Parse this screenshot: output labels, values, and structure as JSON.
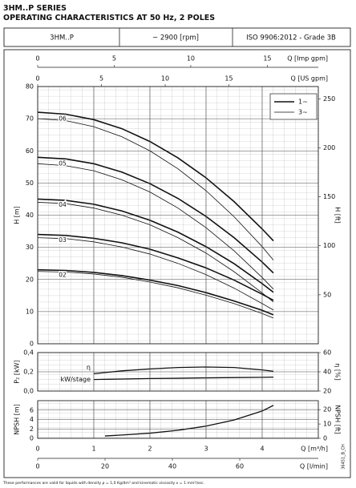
{
  "header": {
    "title": "3HM..P SERIES",
    "subtitle": "OPERATING CHARACTERISTICS AT 50 Hz, 2 POLES",
    "cells": [
      "3HM..P",
      "~ 2900 [rpm]",
      "ISO 9906:2012 - Grade 3B"
    ]
  },
  "chart_data": [
    {
      "type": "line",
      "ylabel": "H [m]",
      "y2label": "H [ft]",
      "x": [
        0,
        0.5,
        1,
        1.5,
        2,
        2.5,
        3,
        3.5,
        4,
        4.2
      ],
      "xlim": [
        0,
        5
      ],
      "ylim": [
        0,
        80
      ],
      "yticks": [
        0,
        10,
        20,
        30,
        40,
        50,
        60,
        70,
        80
      ],
      "y2lim": [
        0,
        262.5
      ],
      "y2ticks": [
        50,
        100,
        150,
        200,
        250
      ],
      "grid": true,
      "top_axes": [
        {
          "label": "Q [Imp gpm]",
          "lim": [
            0,
            18.33
          ],
          "ticks": [
            0,
            5,
            10,
            15
          ]
        },
        {
          "label": "Q [US gpm]",
          "lim": [
            0,
            22.01
          ],
          "ticks": [
            0,
            5,
            10,
            15
          ]
        }
      ],
      "curves": [
        {
          "label": "06",
          "series": [
            {
              "name": "1~",
              "values": [
                72,
                71.4,
                69.7,
                66.9,
                62.9,
                57.8,
                51.6,
                44.2,
                35.7,
                32.0
              ]
            },
            {
              "name": "3~",
              "values": [
                70,
                69.4,
                67.5,
                64.4,
                60.0,
                54.4,
                47.6,
                39.5,
                30.2,
                26.0
              ]
            }
          ]
        },
        {
          "label": "05",
          "series": [
            {
              "name": "1~",
              "values": [
                58,
                57.5,
                56.0,
                53.4,
                49.8,
                45.2,
                39.6,
                33.0,
                25.4,
                22.0
              ]
            },
            {
              "name": "3~",
              "values": [
                56,
                55.4,
                53.8,
                51.0,
                47.2,
                42.2,
                36.1,
                28.9,
                20.6,
                17.0
              ]
            }
          ]
        },
        {
          "label": "04",
          "series": [
            {
              "name": "1~",
              "values": [
                45,
                44.6,
                43.4,
                41.3,
                38.4,
                34.7,
                30.2,
                24.9,
                18.7,
                16.0
              ]
            },
            {
              "name": "3~",
              "values": [
                44,
                43.6,
                42.2,
                40.0,
                37.0,
                33.0,
                28.2,
                22.4,
                15.8,
                13.0
              ]
            }
          ]
        },
        {
          "label": "03",
          "series": [
            {
              "name": "1~",
              "values": [
                34,
                33.7,
                32.8,
                31.4,
                29.4,
                26.7,
                23.6,
                19.8,
                15.4,
                13.5
              ]
            },
            {
              "name": "3~",
              "values": [
                33,
                32.7,
                31.7,
                30.1,
                27.9,
                25.0,
                21.5,
                17.3,
                12.5,
                10.5
              ]
            }
          ]
        },
        {
          "label": "02",
          "series": [
            {
              "name": "1~",
              "values": [
                23,
                22.8,
                22.2,
                21.2,
                19.8,
                18.1,
                15.9,
                13.3,
                10.4,
                9.0
              ]
            },
            {
              "name": "3~",
              "values": [
                22.5,
                22.3,
                21.7,
                20.7,
                19.2,
                17.4,
                15.1,
                12.5,
                9.4,
                8.0
              ]
            }
          ]
        }
      ]
    },
    {
      "type": "line",
      "ylabel": "P₂ [kW]",
      "y2label": "η [%]",
      "x": [
        1,
        1.5,
        2,
        2.5,
        3,
        3.5,
        4,
        4.2
      ],
      "xlim": [
        0,
        5
      ],
      "ylim": [
        0,
        0.4
      ],
      "yticks": [
        {
          "value": 0,
          "label": "0,0"
        },
        {
          "value": 0.2,
          "label": "0,2"
        },
        {
          "value": 0.4,
          "label": "0,4"
        }
      ],
      "y2lim": [
        20,
        60
      ],
      "y2ticks": [
        20,
        40,
        60
      ],
      "grid": true,
      "series": [
        {
          "name": "η",
          "axis": "y2",
          "values": [
            38,
            41,
            43,
            44.5,
            45,
            44.5,
            42,
            40.5
          ]
        },
        {
          "name": "kW/stage",
          "values": [
            0.12,
            0.125,
            0.13,
            0.133,
            0.137,
            0.14,
            0.143,
            0.145
          ]
        }
      ]
    },
    {
      "type": "line",
      "ylabel": "NPSH [m]",
      "y2label": "NPSH [ft]",
      "x": [
        1.2,
        1.5,
        2,
        2.5,
        3,
        3.5,
        4,
        4.2
      ],
      "xlim": [
        0,
        5
      ],
      "ylim": [
        0,
        8
      ],
      "yticks": [
        0,
        2,
        4,
        6
      ],
      "y2lim": [
        0,
        26.25
      ],
      "y2ticks": [
        0,
        10,
        20
      ],
      "grid": true,
      "series": [
        {
          "values": [
            0.5,
            0.7,
            1.1,
            1.7,
            2.6,
            3.9,
            5.8,
            7.0
          ]
        }
      ],
      "bottom_axes": [
        {
          "label": "Q [m³/h]",
          "lim": [
            0,
            5
          ],
          "ticks": [
            0,
            1,
            2,
            3,
            4
          ]
        },
        {
          "label": "Q [l/min]",
          "lim": [
            0,
            83.33
          ],
          "ticks": [
            0,
            20,
            40,
            60
          ]
        }
      ]
    }
  ],
  "code": "36451_B_CH",
  "footnote": "These performances are valid for liquids with density ρ = 1,0 Kg/dm³ and kinematic viscosity ν = 1 mm²/sec."
}
